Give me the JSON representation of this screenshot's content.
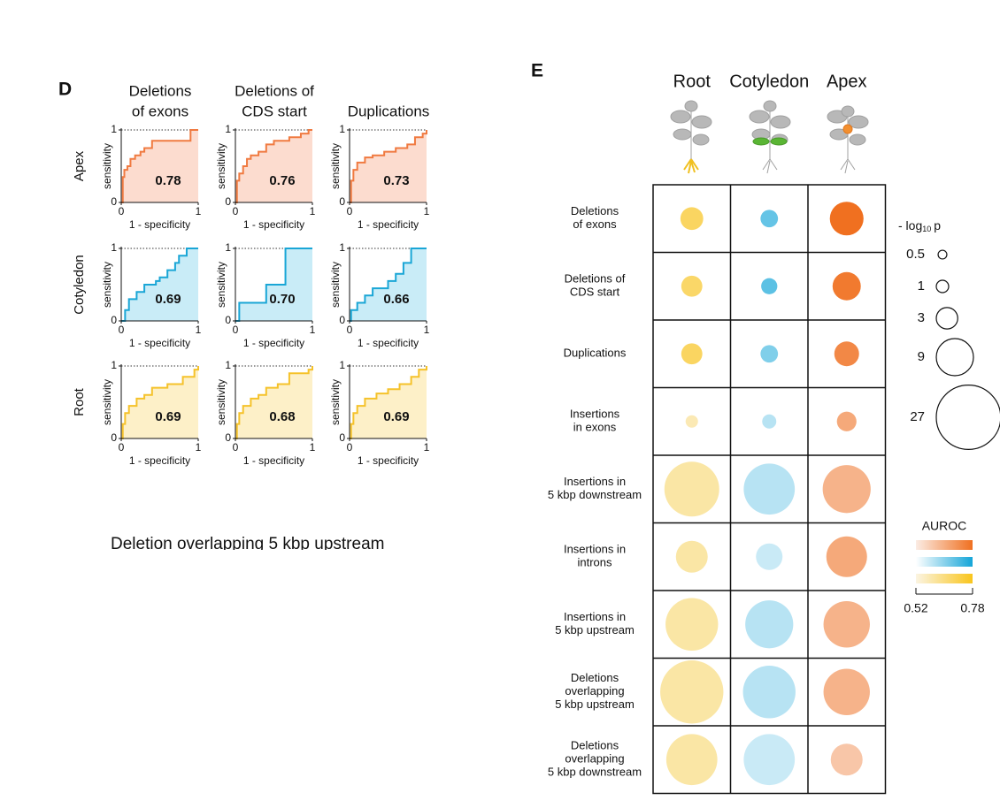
{
  "panel_d": {
    "label": "D",
    "columns": [
      [
        "Deletions",
        "of exons"
      ],
      [
        "Deletions of",
        "CDS start"
      ],
      [
        "Duplications"
      ]
    ],
    "rows": [
      "Apex",
      "Cotyledon",
      "Root"
    ],
    "x_label": "1 - specificity",
    "y_label": "sensitivity",
    "ticks": [
      0,
      1
    ],
    "auc": [
      [
        "0.78",
        "0.76",
        "0.73"
      ],
      [
        "0.69",
        "0.70",
        "0.66"
      ],
      [
        "0.69",
        "0.68",
        "0.69"
      ]
    ],
    "line_colors": [
      "#f07a40",
      "#1aa6d6",
      "#f5c22a"
    ],
    "fill_colors": [
      "#fcdccf",
      "#c9ecf7",
      "#fdf0c8"
    ],
    "curves": [
      [
        {
          "x": [
            0,
            0.02,
            0.04,
            0.08,
            0.12,
            0.18,
            0.25,
            0.3,
            0.4,
            0.85,
            0.9,
            1
          ],
          "y": [
            0,
            0.35,
            0.45,
            0.5,
            0.6,
            0.65,
            0.7,
            0.75,
            0.85,
            0.85,
            1,
            1
          ]
        },
        {
          "x": [
            0,
            0.02,
            0.05,
            0.1,
            0.15,
            0.2,
            0.3,
            0.4,
            0.5,
            0.7,
            0.85,
            0.95,
            1
          ],
          "y": [
            0,
            0.3,
            0.4,
            0.5,
            0.6,
            0.65,
            0.7,
            0.8,
            0.85,
            0.9,
            0.95,
            1,
            1
          ]
        },
        {
          "x": [
            0,
            0.02,
            0.05,
            0.1,
            0.2,
            0.3,
            0.45,
            0.6,
            0.75,
            0.85,
            0.95,
            1
          ],
          "y": [
            0,
            0.3,
            0.45,
            0.55,
            0.62,
            0.65,
            0.7,
            0.75,
            0.8,
            0.9,
            0.95,
            1
          ]
        }
      ],
      [
        {
          "x": [
            0,
            0.05,
            0.1,
            0.2,
            0.3,
            0.45,
            0.5,
            0.6,
            0.7,
            0.75,
            0.85,
            1
          ],
          "y": [
            0,
            0.15,
            0.3,
            0.4,
            0.5,
            0.55,
            0.6,
            0.7,
            0.8,
            0.9,
            1,
            1
          ]
        },
        {
          "x": [
            0,
            0.05,
            0.4,
            0.65,
            1
          ],
          "y": [
            0,
            0.25,
            0.5,
            1,
            1
          ]
        },
        {
          "x": [
            0,
            0.02,
            0.1,
            0.2,
            0.3,
            0.5,
            0.6,
            0.7,
            0.8,
            1
          ],
          "y": [
            0,
            0.15,
            0.25,
            0.35,
            0.45,
            0.55,
            0.65,
            0.8,
            1,
            1
          ]
        }
      ],
      [
        {
          "x": [
            0,
            0.02,
            0.05,
            0.1,
            0.2,
            0.3,
            0.4,
            0.6,
            0.8,
            0.95,
            1
          ],
          "y": [
            0,
            0.2,
            0.35,
            0.45,
            0.55,
            0.6,
            0.7,
            0.75,
            0.85,
            0.95,
            1
          ]
        },
        {
          "x": [
            0,
            0.02,
            0.05,
            0.1,
            0.2,
            0.3,
            0.4,
            0.55,
            0.7,
            0.95,
            1
          ],
          "y": [
            0,
            0.2,
            0.35,
            0.45,
            0.55,
            0.6,
            0.7,
            0.75,
            0.9,
            0.95,
            1
          ]
        },
        {
          "x": [
            0,
            0.02,
            0.05,
            0.1,
            0.2,
            0.35,
            0.5,
            0.65,
            0.8,
            0.9,
            1
          ],
          "y": [
            0,
            0.2,
            0.35,
            0.45,
            0.55,
            0.62,
            0.68,
            0.75,
            0.85,
            0.95,
            1
          ]
        }
      ]
    ]
  },
  "stray_text": "Deletion overlapping 5 kbp upstream",
  "panel_e": {
    "label": "E",
    "columns": [
      "Root",
      "Cotyledon",
      "Apex"
    ],
    "rows": [
      [
        "Deletions",
        "of exons"
      ],
      [
        "Deletions of",
        "CDS start"
      ],
      [
        "Duplications"
      ],
      [
        "Insertions",
        "in exons"
      ],
      [
        "Insertions in",
        "5 kbp downstream"
      ],
      [
        "Insertions in",
        "introns"
      ],
      [
        "Insertions in",
        "5 kbp upstream"
      ],
      [
        "Deletions",
        "overlapping",
        "5 kbp upstream"
      ],
      [
        "Deletions",
        "overlapping",
        "5 kbp downstream"
      ]
    ],
    "neglog10p": [
      [
        3.4,
        2,
        7.4
      ],
      [
        2.9,
        1.7,
        5.2
      ],
      [
        2.9,
        2,
        4
      ],
      [
        1,
        1.3,
        2.5
      ],
      [
        19.6,
        17,
        15
      ],
      [
        6.6,
        4.6,
        10.8
      ],
      [
        18,
        15,
        14
      ],
      [
        26,
        18,
        14
      ],
      [
        17,
        17,
        6.6
      ]
    ],
    "auroc": [
      [
        0.69,
        0.69,
        0.78
      ],
      [
        0.68,
        0.7,
        0.76
      ],
      [
        0.69,
        0.66,
        0.73
      ],
      [
        0.58,
        0.6,
        0.66
      ],
      [
        0.6,
        0.6,
        0.64
      ],
      [
        0.6,
        0.58,
        0.66
      ],
      [
        0.6,
        0.6,
        0.64
      ],
      [
        0.6,
        0.6,
        0.64
      ],
      [
        0.6,
        0.58,
        0.6
      ]
    ],
    "size_legend": {
      "title": {
        "prefix": "- log",
        "sub": "10",
        "suffix": "p"
      },
      "values": [
        0.5,
        1,
        3,
        9,
        27
      ]
    },
    "color_legend": {
      "title": "AUROC",
      "range": [
        0.52,
        0.78
      ],
      "colors": [
        [
          "#fbf4e2",
          "#f9c51c"
        ],
        [
          "#ffffff",
          "#14a5d8"
        ],
        [
          "#fbece4",
          "#f07020"
        ]
      ],
      "bar_order": [
        2,
        1,
        0
      ]
    }
  }
}
